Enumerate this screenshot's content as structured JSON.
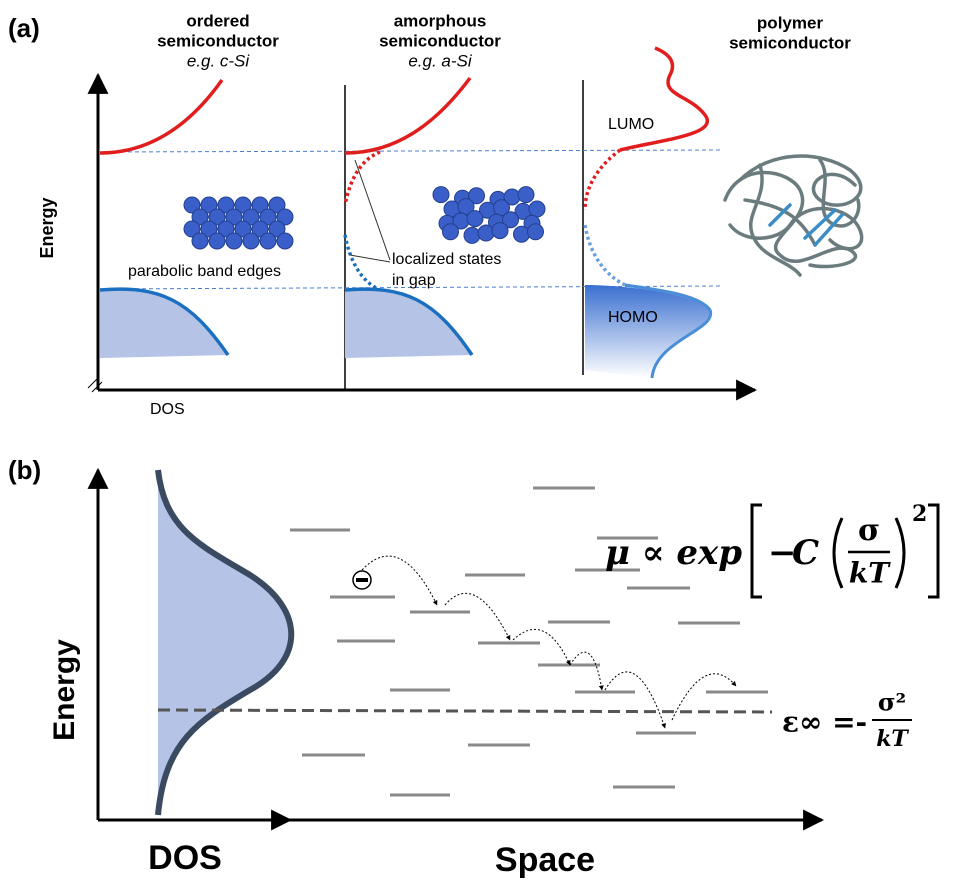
{
  "panel_a": {
    "label": "(a)",
    "columns": [
      {
        "title_line1": "ordered",
        "title_line2": "semiconductor",
        "example": "e.g. c-Si"
      },
      {
        "title_line1": "amorphous",
        "title_line2": "semiconductor",
        "example": "e.g. a-Si"
      },
      {
        "title_line1": "polymer",
        "title_line2": "semiconductor"
      }
    ],
    "y_axis_label": "Energy",
    "x_axis_label": "DOS",
    "annotations": {
      "band_edges": "parabolic band edges",
      "localized_line1": "localized states",
      "localized_line2": "in gap",
      "lumo": "LUMO",
      "homo": "HOMO"
    }
  },
  "panel_b": {
    "label": "(b)",
    "y_axis_label": "Energy",
    "x_axis_label_dos": "DOS",
    "x_axis_label_space": "Space",
    "mobility": {
      "lhs": "μ ∝ exp",
      "minus": "−",
      "constant": "C",
      "numerator": "σ",
      "denominator": "kT",
      "exponent": "2"
    },
    "equilibrium": {
      "lhs": "ε∞ =-",
      "numerator": "σ²",
      "denominator": "kT"
    }
  }
}
